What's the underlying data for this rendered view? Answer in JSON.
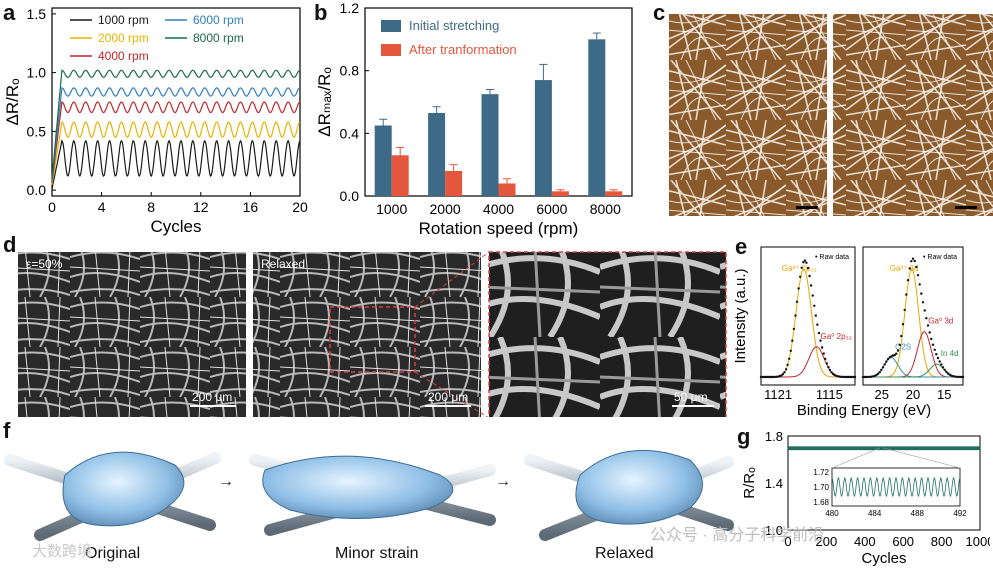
{
  "panels": {
    "a": "a",
    "b": "b",
    "c": "c",
    "d": "d",
    "e": "e",
    "f": "f",
    "g": "g"
  },
  "panel_d": {
    "label_left": "ε=50%",
    "label_mid": "Relaxed",
    "scale_left": "200 μm",
    "scale_mid": "200 μm",
    "scale_right": "50 μm"
  },
  "panel_f": {
    "captions": [
      "Original",
      "Minor strain",
      "Relaxed"
    ],
    "arrow": "→"
  },
  "watermarks": {
    "left": "大数跨境",
    "right": "公众号 · 高分子科学前沿"
  },
  "colors": {
    "c1000": "#1a1a1a",
    "c2000": "#e8b400",
    "c4000": "#c0272d",
    "c6000": "#2f7fbf",
    "c8000": "#1a6b47",
    "bar_initial": "#3d6b87",
    "bar_after": "#e4573d",
    "g_line": "#1f6e5e"
  },
  "chart_data": [
    {
      "id": "a",
      "type": "line",
      "xlabel": "Cycles",
      "ylabel": "ΔR/Rₒ",
      "xlim": [
        0,
        20
      ],
      "ylim": [
        -0.05,
        1.55
      ],
      "xticks": [
        0,
        4,
        8,
        12,
        16,
        20
      ],
      "yticks": [
        0.0,
        0.5,
        1.0,
        1.5
      ],
      "legend": "top-left, two columns",
      "series": [
        {
          "name": "1000 rpm",
          "baseline": 0.12,
          "peak": 0.42,
          "cycles": 20,
          "color_key": "c1000"
        },
        {
          "name": "2000 rpm",
          "baseline": 0.45,
          "peak": 0.58,
          "cycles": 20,
          "color_key": "c2000"
        },
        {
          "name": "4000 rpm",
          "baseline": 0.66,
          "peak": 0.75,
          "cycles": 20,
          "color_key": "c4000"
        },
        {
          "name": "6000 rpm",
          "baseline": 0.8,
          "peak": 0.87,
          "cycles": 20,
          "color_key": "c6000"
        },
        {
          "name": "8000 rpm",
          "baseline": 0.96,
          "peak": 1.02,
          "cycles": 20,
          "color_key": "c8000"
        }
      ]
    },
    {
      "id": "b",
      "type": "bar",
      "xlabel": "Rotation speed (rpm)",
      "ylabel": "ΔRₘₐₓ/Rₒ",
      "categories": [
        "1000",
        "2000",
        "4000",
        "6000",
        "8000"
      ],
      "ylim": [
        0,
        1.2
      ],
      "yticks": [
        0.0,
        0.4,
        0.8,
        1.2
      ],
      "legend": "top-left",
      "series": [
        {
          "name": "Initial stretching",
          "values": [
            0.45,
            0.53,
            0.65,
            0.74,
            1.0
          ],
          "errors": [
            0.04,
            0.04,
            0.03,
            0.1,
            0.04
          ],
          "color_key": "bar_initial"
        },
        {
          "name": "After tranformation",
          "values": [
            0.26,
            0.16,
            0.08,
            0.03,
            0.03
          ],
          "errors": [
            0.05,
            0.04,
            0.03,
            0.01,
            0.01
          ],
          "color_key": "bar_after"
        }
      ]
    },
    {
      "id": "e",
      "type": "line",
      "ylabel": "Intensity (a.u.)",
      "xlabel": "Binding Energy (eV)",
      "subplots": [
        {
          "xticks": [
            1121,
            1115
          ],
          "xtick_labels": [
            "1121",
            "1115"
          ],
          "legend": "• Raw data",
          "peaks": [
            {
              "label": "Ga³⁺ 2p₃₂",
              "center": 1118,
              "height": 1.0
            },
            {
              "label": "Ga⁰ 2p₃₂",
              "center": 1116.5,
              "height": 0.28
            }
          ]
        },
        {
          "xticks": [
            25,
            20,
            15
          ],
          "xtick_labels": [
            "25",
            "20",
            "15"
          ],
          "legend": "• Raw data",
          "peaks": [
            {
              "label": "Ga³⁺ 3d",
              "center": 20.2,
              "height": 1.0
            },
            {
              "label": "Ga⁰ 3d",
              "center": 18.2,
              "height": 0.42
            },
            {
              "label": "O2S",
              "center": 23.5,
              "height": 0.18
            },
            {
              "label": "In 4d",
              "center": 16.2,
              "height": 0.12
            }
          ]
        }
      ]
    },
    {
      "id": "g",
      "type": "line",
      "xlabel": "Cycles",
      "ylabel": "R/Rₒ",
      "xlim": [
        0,
        1000
      ],
      "ylim": [
        1.0,
        1.8
      ],
      "xticks": [
        0,
        200,
        400,
        600,
        800,
        1000
      ],
      "yticks": [
        1.0,
        1.4,
        1.8
      ],
      "series": [
        {
          "name": "",
          "mean": 1.7,
          "amplitude": 0.012
        }
      ],
      "inset": {
        "xlim": [
          480,
          492
        ],
        "xticks": [
          480,
          484,
          488,
          492
        ],
        "yticks": [
          1.68,
          1.7,
          1.72
        ],
        "ylim": [
          1.675,
          1.725
        ]
      }
    }
  ]
}
